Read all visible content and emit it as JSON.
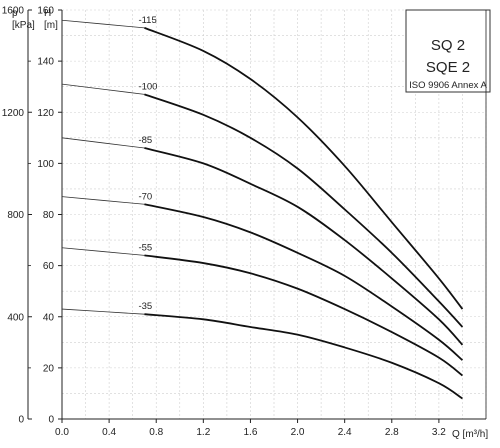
{
  "chart_data": {
    "type": "line",
    "xlabel": "Q [m³/h]",
    "ylabel": "H\n[m]",
    "ylabel_secondary": "p\n[kPa]",
    "xlim": [
      0,
      3.6
    ],
    "ylim": [
      0,
      160
    ],
    "ylim_secondary_kpa": [
      0,
      1600
    ],
    "x_ticks": [
      "0.0",
      "0.4",
      "0.8",
      "1.2",
      "1.6",
      "2.0",
      "2.4",
      "2.8",
      "3.2"
    ],
    "y_ticks": [
      "0",
      "20",
      "40",
      "60",
      "80",
      "100",
      "120",
      "140",
      "160"
    ],
    "y_secondary_ticks": [
      "0",
      "400",
      "800",
      "1200",
      "1600"
    ],
    "grid": true,
    "legend_box": {
      "title_line_1": "SQ 2",
      "title_line_2": "SQE 2",
      "subtitle": "ISO 9906 Annex A",
      "placement": "top-right"
    },
    "series": [
      {
        "name": "-115",
        "x": [
          0.0,
          0.7,
          1.2,
          1.6,
          2.0,
          2.4,
          2.8,
          3.2,
          3.4
        ],
        "thin": [
          0.0,
          0.7
        ],
        "values": [
          156,
          153,
          144,
          133,
          118,
          99,
          77,
          55,
          43
        ]
      },
      {
        "name": "-100",
        "x": [
          0.0,
          0.7,
          1.2,
          1.6,
          2.0,
          2.4,
          2.8,
          3.2,
          3.4
        ],
        "thin": [
          0.0,
          0.7
        ],
        "values": [
          131,
          127,
          119,
          110,
          98,
          82,
          65,
          46,
          36
        ]
      },
      {
        "name": "-85",
        "x": [
          0.0,
          0.7,
          1.2,
          1.6,
          2.0,
          2.4,
          2.8,
          3.2,
          3.4
        ],
        "thin": [
          0.0,
          0.7
        ],
        "values": [
          110,
          106,
          100,
          92,
          83,
          70,
          55,
          39,
          29
        ]
      },
      {
        "name": "-70",
        "x": [
          0.0,
          0.7,
          1.2,
          1.6,
          2.0,
          2.4,
          2.8,
          3.2,
          3.4
        ],
        "thin": [
          0.0,
          0.7
        ],
        "values": [
          87,
          84,
          79,
          73,
          65,
          56,
          44,
          31,
          23
        ]
      },
      {
        "name": "-55",
        "x": [
          0.0,
          0.7,
          1.2,
          1.6,
          2.0,
          2.4,
          2.8,
          3.2,
          3.4
        ],
        "thin": [
          0.0,
          0.7
        ],
        "values": [
          67,
          64,
          61,
          57,
          51,
          43,
          34,
          24,
          17
        ]
      },
      {
        "name": "-35",
        "x": [
          0.0,
          0.7,
          1.2,
          1.6,
          2.0,
          2.4,
          2.8,
          3.2,
          3.4
        ],
        "thin": [
          0.0,
          0.7
        ],
        "values": [
          43,
          41,
          39,
          36,
          33,
          28,
          22,
          14,
          8
        ]
      }
    ]
  }
}
